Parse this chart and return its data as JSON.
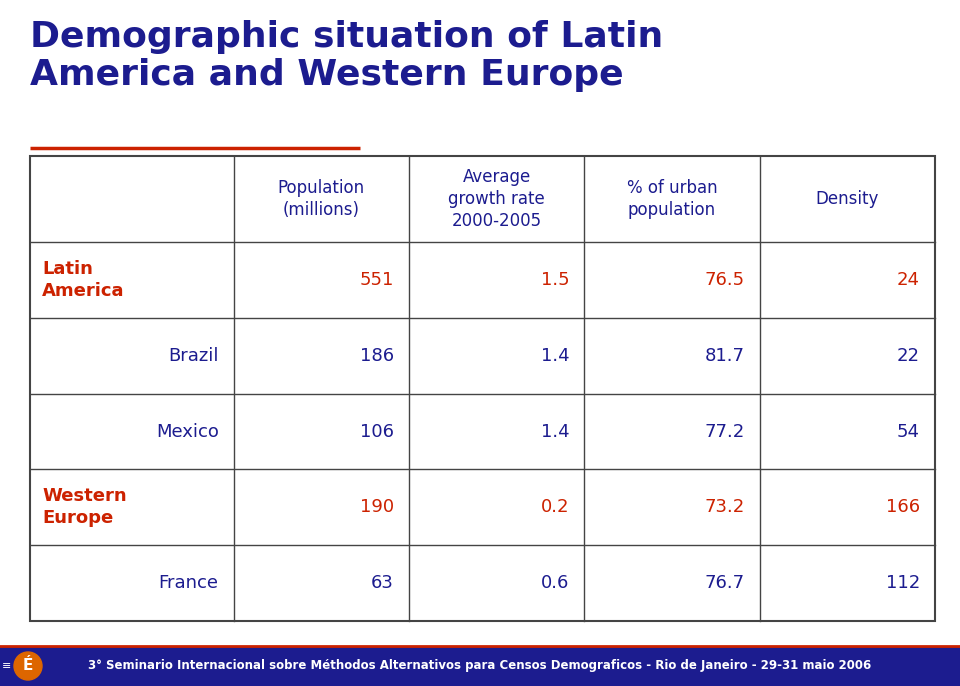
{
  "title_line1": "Demographic situation of Latin",
  "title_line2": "America and Western Europe",
  "title_color": "#1c1c8f",
  "title_fontsize": 26,
  "underline_color": "#cc2200",
  "col_headers": [
    "Population\n(millions)",
    "Average\ngrowth rate\n2000-2005",
    "% of urban\npopulation",
    "Density"
  ],
  "col_header_color": "#1c1c8f",
  "col_header_fontsize": 12,
  "rows": [
    {
      "label": "Latin\nAmerica",
      "label_bold": true,
      "label_color": "#cc2200",
      "data_color": "#cc2200",
      "values": [
        "551",
        "1.5",
        "76.5",
        "24"
      ]
    },
    {
      "label": "Brazil",
      "label_bold": false,
      "label_color": "#1c1c8f",
      "data_color": "#1c1c8f",
      "values": [
        "186",
        "1.4",
        "81.7",
        "22"
      ]
    },
    {
      "label": "Mexico",
      "label_bold": false,
      "label_color": "#1c1c8f",
      "data_color": "#1c1c8f",
      "values": [
        "106",
        "1.4",
        "77.2",
        "54"
      ]
    },
    {
      "label": "Western\nEurope",
      "label_bold": true,
      "label_color": "#cc2200",
      "data_color": "#cc2200",
      "values": [
        "190",
        "0.2",
        "73.2",
        "166"
      ]
    },
    {
      "label": "France",
      "label_bold": false,
      "label_color": "#1c1c8f",
      "data_color": "#1c1c8f",
      "values": [
        "63",
        "0.6",
        "76.7",
        "112"
      ]
    }
  ],
  "footer_text": "3° Seminario Internacional sobre Méthodos Alternativos para Censos Demograficos - Rio de Janeiro - 29-31 maio 2006",
  "footer_color": "#ffffff",
  "footer_bg": "#1c1c8f",
  "footer_fontsize": 8.5,
  "bg_color": "#ffffff",
  "table_border_color": "#444444",
  "data_fontsize": 13,
  "label_fontsize": 13
}
